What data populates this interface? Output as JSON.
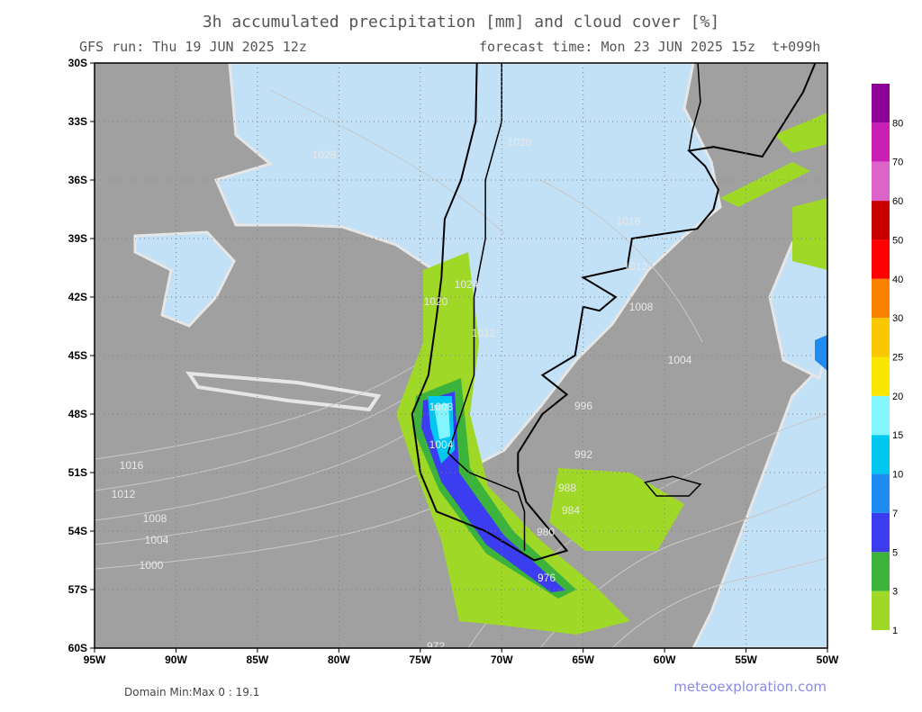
{
  "header": {
    "title": "3h accumulated precipitation [mm] and cloud cover [%]",
    "run": "GFS run: Thu 19 JUN 2025 12z",
    "forecast": "forecast time: Mon 23 JUN 2025 15z  t+099h"
  },
  "map": {
    "xlim": [
      -95,
      -50
    ],
    "ylim": [
      -60,
      -30
    ],
    "xticks": [
      {
        "value": -95,
        "label": "95W"
      },
      {
        "value": -90,
        "label": "90W"
      },
      {
        "value": -85,
        "label": "85W"
      },
      {
        "value": -80,
        "label": "80W"
      },
      {
        "value": -75,
        "label": "75W"
      },
      {
        "value": -70,
        "label": "70W"
      },
      {
        "value": -65,
        "label": "65W"
      },
      {
        "value": -60,
        "label": "60W"
      },
      {
        "value": -55,
        "label": "55W"
      },
      {
        "value": -50,
        "label": "50W"
      }
    ],
    "yticks": [
      {
        "value": -30,
        "label": "30S"
      },
      {
        "value": -33,
        "label": "33S"
      },
      {
        "value": -36,
        "label": "36S"
      },
      {
        "value": -39,
        "label": "39S"
      },
      {
        "value": -42,
        "label": "42S"
      },
      {
        "value": -45,
        "label": "45S"
      },
      {
        "value": -48,
        "label": "48S"
      },
      {
        "value": -51,
        "label": "51S"
      },
      {
        "value": -54,
        "label": "54S"
      },
      {
        "value": -57,
        "label": "57S"
      },
      {
        "value": -60,
        "label": "60S"
      }
    ],
    "grid": true,
    "isobar_labels": [
      1028,
      1020,
      1016,
      1012,
      1008,
      1024,
      1020,
      1012,
      1008,
      1004,
      996,
      992,
      988,
      984,
      980,
      976,
      972,
      1016,
      1012,
      1008,
      1004,
      1000,
      1004
    ]
  },
  "colorbar": {
    "levels": [
      1,
      3,
      5,
      7,
      10,
      15,
      20,
      25,
      30,
      40,
      50,
      60,
      70,
      80
    ],
    "colors": [
      "#a0d828",
      "#3cb43c",
      "#3c3cf0",
      "#1e8cf0",
      "#00c8f0",
      "#82f5ff",
      "#fae600",
      "#fac800",
      "#fa8200",
      "#ff0000",
      "#c80000",
      "#dc64c8",
      "#c81eb4",
      "#8c0096"
    ]
  },
  "footer": {
    "domain": "Domain Min:Max 0 : 19.1",
    "site": "meteoexploration.com"
  }
}
